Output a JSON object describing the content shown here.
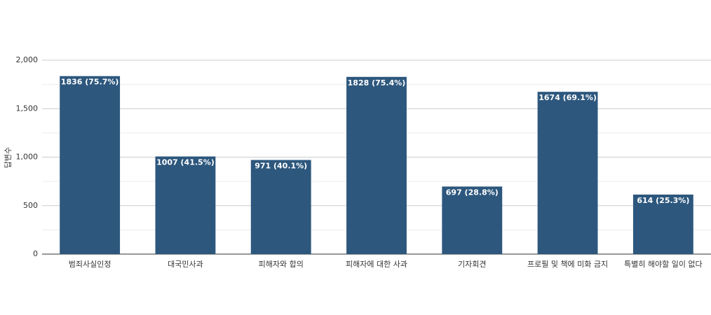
{
  "chart_data": {
    "type": "bar",
    "y_label": "답변수",
    "categories": [
      "범죄사실인정",
      "대국민사과",
      "피해자와 합의",
      "피해자에 대한 사과",
      "기자회견",
      "프로필 및 책에 미화 금지",
      "특별히 해야할 일이 없다"
    ],
    "values": [
      1836,
      1007,
      971,
      1828,
      697,
      1674,
      614
    ],
    "value_labels": [
      "1836 (75.7%)",
      "1007 (41.5%)",
      "971 (40.1%)",
      "1828 (75.4%)",
      "697 (28.8%)",
      "1674 (69.1%)",
      "614 (25.3%)"
    ],
    "color": "#2d577d",
    "ylim": [
      0,
      2000
    ],
    "yticks": [
      0,
      500,
      {
        "value": 1000,
        "label": "1,000"
      },
      {
        "value": 1500,
        "label": "1,500"
      },
      {
        "value": 2000,
        "label": "2,000"
      }
    ],
    "minor_yticks": [
      250,
      750,
      1250,
      1750
    ],
    "grid": true
  }
}
